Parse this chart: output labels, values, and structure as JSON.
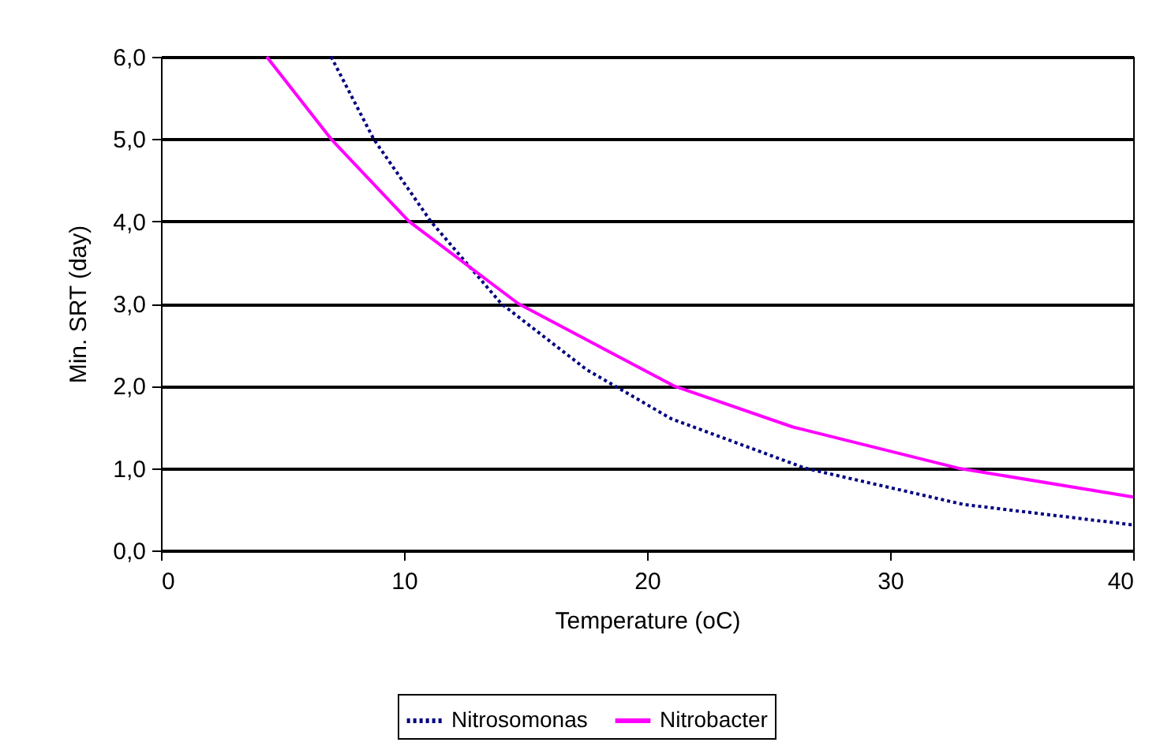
{
  "chart_data": {
    "type": "line",
    "xlabel": "Temperature (oC)",
    "ylabel": "Min. SRT (day)",
    "xlim": [
      0,
      40
    ],
    "xticks": [
      0,
      10,
      20,
      30,
      40
    ],
    "ylim": [
      0,
      6
    ],
    "yticks": [
      {
        "value": 0,
        "label": "0,0"
      },
      {
        "value": 1,
        "label": "1,0"
      },
      {
        "value": 2,
        "label": "2,0"
      },
      {
        "value": 3,
        "label": "3,0"
      },
      {
        "value": 4,
        "label": "4,0"
      },
      {
        "value": 5,
        "label": "5,0"
      },
      {
        "value": 6,
        "label": "6,0"
      }
    ],
    "grid": "y",
    "legend": "bottom",
    "series": [
      {
        "name": "Nitrosomonas",
        "color": "#000080",
        "line_style": "dotted",
        "x": [
          7,
          8.75,
          11.1,
          14,
          17.5,
          21,
          26.5,
          33,
          40
        ],
        "values": [
          6,
          5,
          4,
          3,
          2.2,
          1.6,
          1,
          0.56,
          0.31
        ]
      },
      {
        "name": "Nitrobacter",
        "color": "#ff00ff",
        "line_style": "solid",
        "x": [
          4.35,
          7,
          10.2,
          14.7,
          21.1,
          26,
          32.8,
          40
        ],
        "values": [
          6,
          5,
          4,
          3,
          2,
          1.5,
          1,
          0.65
        ]
      }
    ]
  }
}
